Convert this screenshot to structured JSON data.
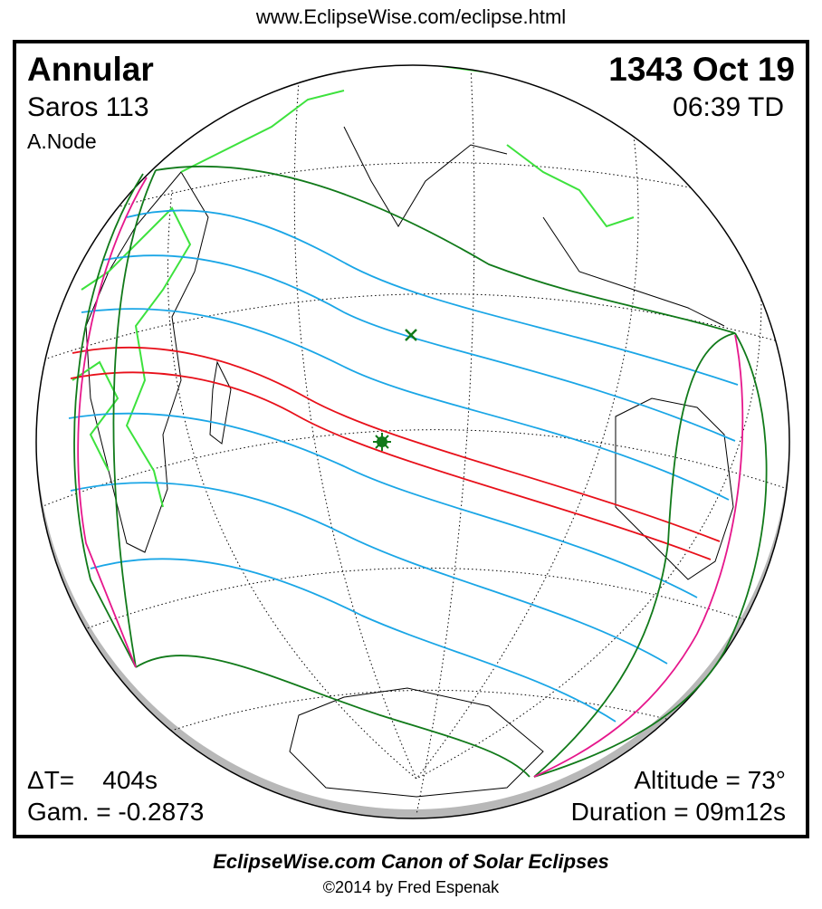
{
  "header": {
    "url": "www.EclipseWise.com/eclipse.html"
  },
  "eclipse": {
    "type": "Annular",
    "saros": "Saros 113",
    "node": "A.Node",
    "date": "1343 Oct 19",
    "time": "06:39 TD",
    "delta_t": "ΔT=    404s",
    "gamma": "Gam. = -0.2873",
    "altitude": "Altitude = 73°",
    "duration": "Duration = 09m12s"
  },
  "footer": {
    "canon": "EclipseWise.com Canon of Solar Eclipses",
    "copyright": "©2014 by Fred Espenak"
  },
  "colors": {
    "central_path": "#e8101a",
    "penumbral_lines": "#1aa6e6",
    "penumbra_limits": "#117a1a",
    "rise_set_curve": "#e6178c",
    "borders": "#3de23d",
    "night_shadow": "#b8b8b8"
  },
  "markers": {
    "greatest_eclipse": "star",
    "subsolar_point": "x"
  }
}
